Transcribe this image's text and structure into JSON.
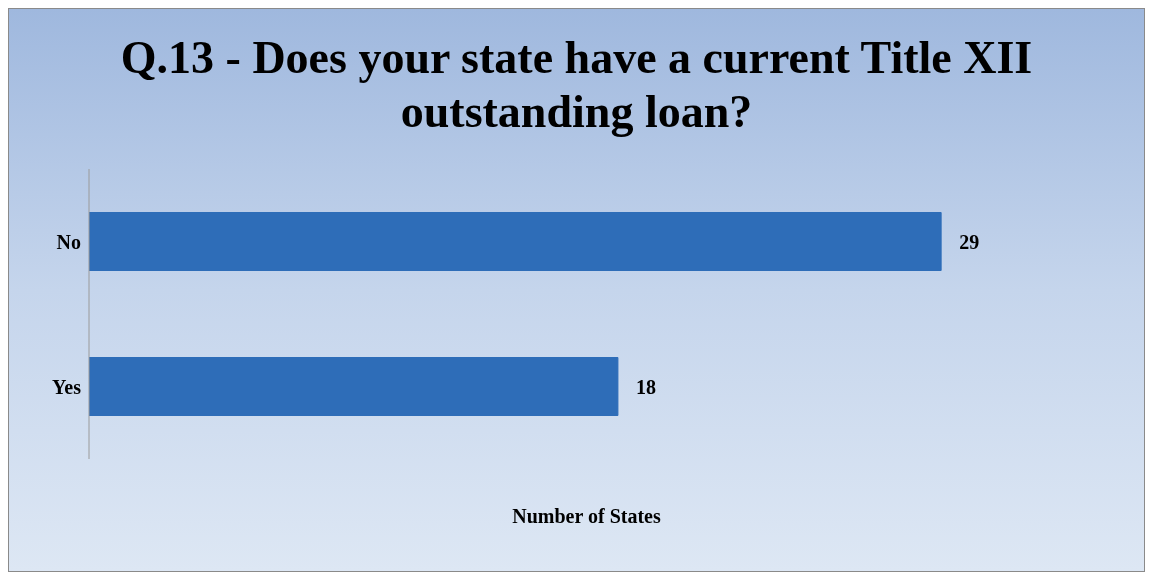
{
  "chart_data": {
    "type": "bar",
    "orientation": "horizontal",
    "title": "Q.13 - Does your state have a current Title XII outstanding loan?",
    "xlabel": "Number of States",
    "categories": [
      "No",
      "Yes"
    ],
    "values": [
      29,
      18
    ],
    "color": "#2e6db8",
    "data_labels": true,
    "grid": false,
    "legend": false
  }
}
